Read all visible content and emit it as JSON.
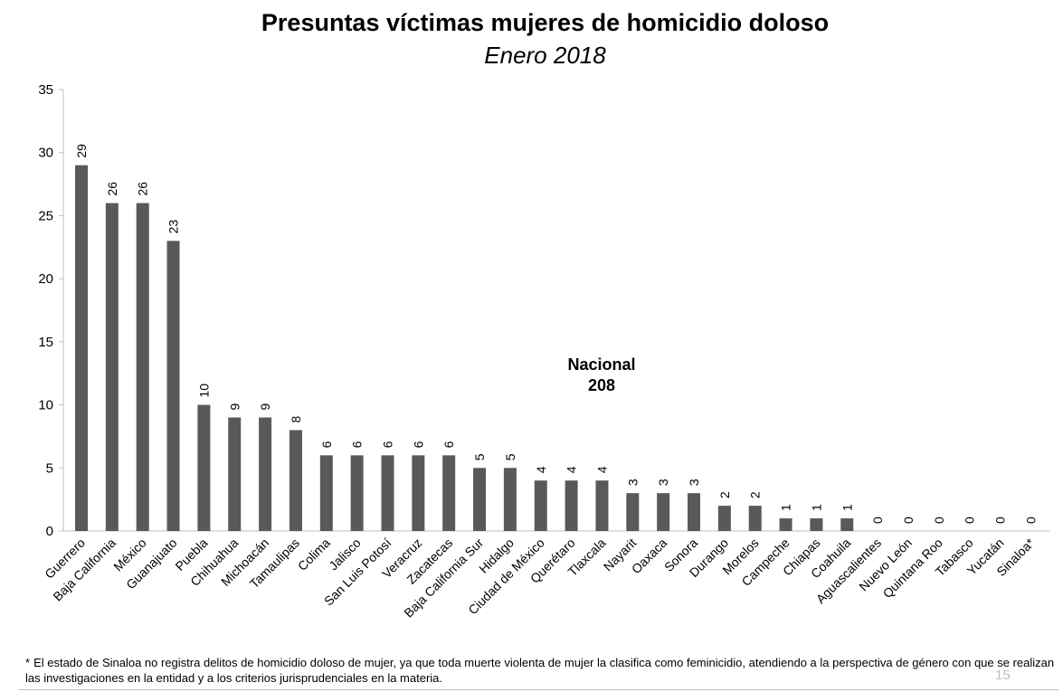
{
  "chart_data": {
    "type": "bar",
    "title": "Presuntas víctimas mujeres de homicidio doloso",
    "subtitle": "Enero 2018",
    "categories": [
      "Guerrero",
      "Baja California",
      "México",
      "Guanajuato",
      "Puebla",
      "Chihuahua",
      "Michoacán",
      "Tamaulipas",
      "Colima",
      "Jalisco",
      "San Luis Potosí",
      "Veracruz",
      "Zacatecas",
      "Baja California Sur",
      "Hidalgo",
      "Ciudad de México",
      "Querétaro",
      "Tlaxcala",
      "Nayarit",
      "Oaxaca",
      "Sonora",
      "Durango",
      "Morelos",
      "Campeche",
      "Chiapas",
      "Coahuila",
      "Aguascalientes",
      "Nuevo León",
      "Quintana Roo",
      "Tabasco",
      "Yucatán",
      "Sinaloa*"
    ],
    "values": [
      29,
      26,
      26,
      23,
      10,
      9,
      9,
      8,
      6,
      6,
      6,
      6,
      6,
      5,
      5,
      4,
      4,
      4,
      3,
      3,
      3,
      2,
      2,
      1,
      1,
      1,
      0,
      0,
      0,
      0,
      0,
      0
    ],
    "yticks": [
      0,
      5,
      10,
      15,
      20,
      25,
      30,
      35
    ],
    "ylim": [
      0,
      35
    ],
    "xlabel": "",
    "ylabel": "",
    "grid": false,
    "bar_color": "#595959",
    "annotation": {
      "label": "Nacional",
      "value": "208"
    }
  },
  "footnote": {
    "marker": "*",
    "text": "El estado de Sinaloa no registra delitos de homicidio doloso de mujer, ya que toda muerte violenta de mujer la clasifica como feminicidio, atendiendo a la perspectiva de género con que se realizan las investigaciones en la entidad y a los criterios jurisprudenciales en la materia."
  },
  "page_number": "15"
}
